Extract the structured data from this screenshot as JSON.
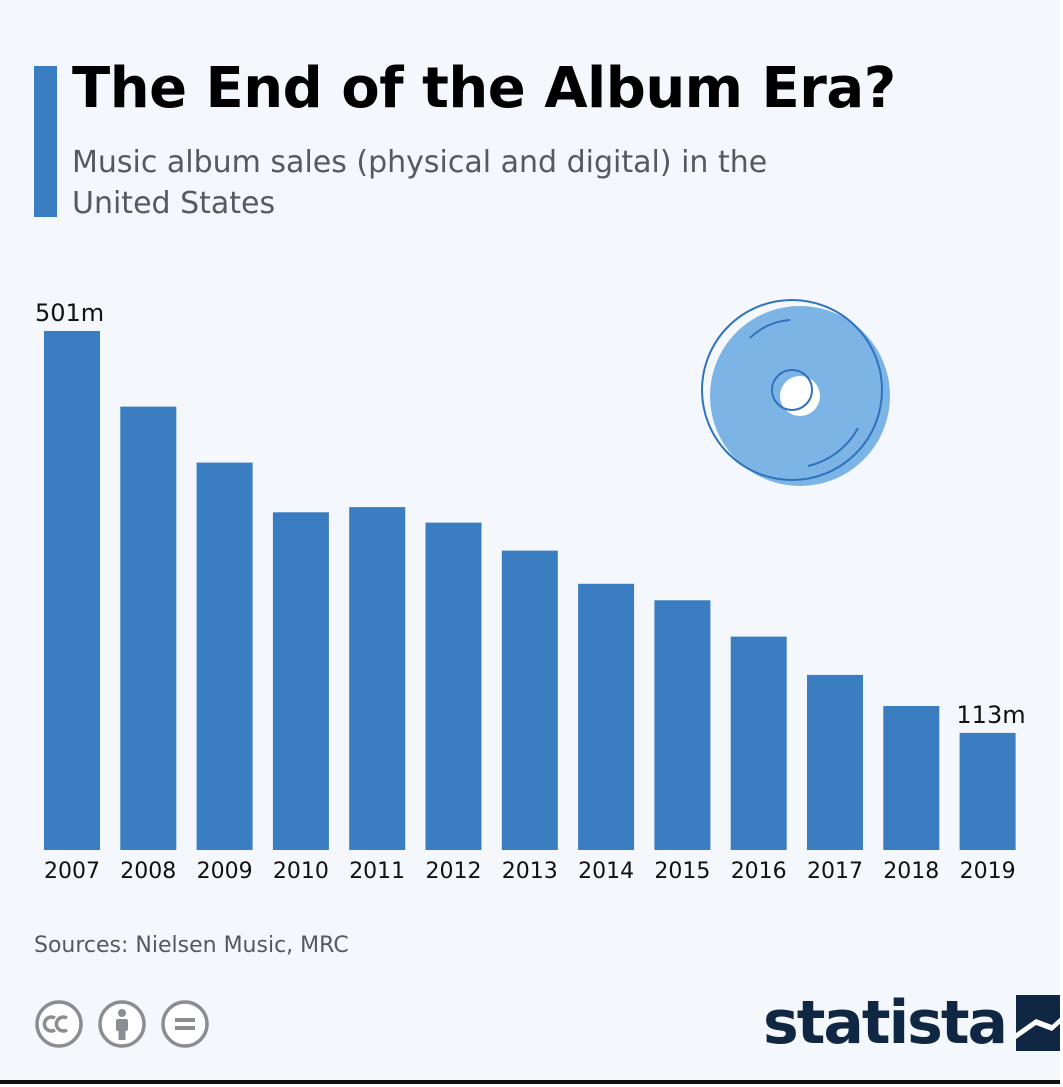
{
  "header": {
    "title": "The End of the Album Era?",
    "subtitle": "Music album sales (physical and digital) in the United States"
  },
  "colors": {
    "bar": "#3b7dc1",
    "accent": "#3b7dc1",
    "disc": "#7db4e6",
    "disc_outline": "#2f73bc",
    "brand": "#0f2742"
  },
  "chart_data": {
    "type": "bar",
    "categories": [
      "2007",
      "2008",
      "2009",
      "2010",
      "2011",
      "2012",
      "2013",
      "2014",
      "2015",
      "2016",
      "2017",
      "2018",
      "2019"
    ],
    "values": [
      501,
      428,
      374,
      326,
      331,
      316,
      289,
      257,
      241,
      206,
      169,
      139,
      113
    ],
    "data_labels": [
      {
        "index": 0,
        "text": "501m"
      },
      {
        "index": 12,
        "text": "113m"
      }
    ],
    "unit": "m",
    "ylim": [
      0,
      501
    ],
    "grid": false,
    "legend": "none"
  },
  "decoration": {
    "icon": "compact-disc-icon"
  },
  "footer": {
    "source": "Sources: Nielsen Music, MRC",
    "license_icons": [
      "creative-commons-icon",
      "attribution-icon",
      "no-derivatives-icon"
    ],
    "brand": "statista"
  }
}
